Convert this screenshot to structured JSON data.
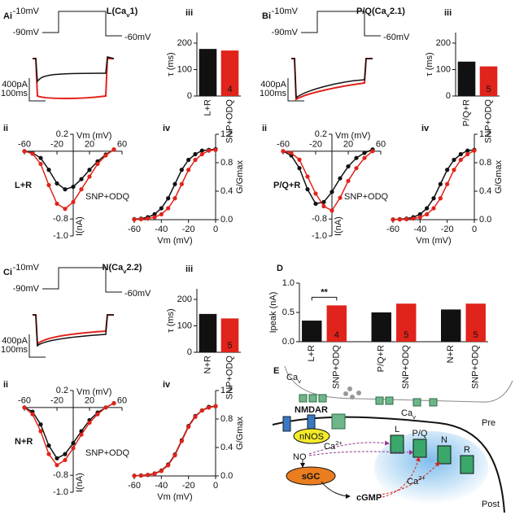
{
  "panels": [
    {
      "label": "Ai",
      "title": {
        "text": "L(Ca",
        "sub": "v",
        "tail": "1)"
      },
      "protocol": {
        "step": "-10mV",
        "hold": "-90mV",
        "tail": "-60mV"
      },
      "scale": {
        "current": "400pA",
        "time": "100ms"
      }
    },
    {
      "label": "Bi",
      "title": {
        "text": "P/Q(Ca",
        "sub": "v",
        "tail": "2.1)"
      },
      "protocol": {
        "step": "-10mV",
        "hold": "-90mV",
        "tail": "-60mV"
      },
      "scale": {
        "current": "400pA",
        "time": "100ms"
      }
    },
    {
      "label": "Ci",
      "title": {
        "text": "N(Ca",
        "sub": "v",
        "tail": "2.2)"
      },
      "protocol": {
        "step": "-10mV",
        "hold": "-90mV",
        "tail": "-60mV"
      },
      "scale": {
        "current": "400pA",
        "time": "100ms"
      }
    }
  ],
  "chart_data": [
    {
      "type": "bar",
      "label": "iii",
      "ylabel": "τ (ms)",
      "categories": [
        "L+R",
        "SNP+ODQ"
      ],
      "values": [
        178,
        172
      ],
      "colors": [
        "#111111",
        "#e0231b"
      ],
      "n": [
        5,
        4
      ],
      "ylim": [
        0,
        240
      ],
      "yticks": [
        0,
        100,
        200
      ]
    },
    {
      "type": "line",
      "label": "ii",
      "xlabel": "Vm (mV)",
      "ylabel": "I(nA)",
      "x": [
        -60,
        -50,
        -40,
        -30,
        -20,
        -10,
        0,
        10,
        20,
        30,
        40,
        50
      ],
      "series": [
        {
          "name": "L+R",
          "color": "#111111",
          "values": [
            0,
            -0.02,
            -0.08,
            -0.22,
            -0.38,
            -0.45,
            -0.42,
            -0.33,
            -0.22,
            -0.12,
            -0.04,
            0.02
          ]
        },
        {
          "name": "SNP+ODQ",
          "color": "#e0231b",
          "values": [
            0,
            -0.03,
            -0.15,
            -0.4,
            -0.62,
            -0.68,
            -0.6,
            -0.45,
            -0.3,
            -0.15,
            -0.05,
            0.02
          ]
        }
      ],
      "xlim": [
        -60,
        60
      ],
      "ylim": [
        -1,
        0.2
      ],
      "xticks": [
        -60,
        -20,
        20,
        60
      ],
      "yticks": [
        {
          "value": -1,
          "label": "-1.0"
        },
        -0.8,
        0.2
      ]
    },
    {
      "type": "line",
      "label": "iv",
      "xlabel": "Vm (mV)",
      "ylabel": "G/Gmax",
      "x": [
        -60,
        -55,
        -50,
        -45,
        -40,
        -35,
        -30,
        -25,
        -20,
        -15,
        -10,
        -5,
        0
      ],
      "series": [
        {
          "color": "#111111",
          "values": [
            0.007,
            0.015,
            0.034,
            0.076,
            0.16,
            0.3,
            0.5,
            0.7,
            0.84,
            0.92,
            0.97,
            0.98,
            0.99
          ]
        },
        {
          "color": "#e0231b",
          "values": [
            0.003,
            0.007,
            0.015,
            0.034,
            0.076,
            0.16,
            0.3,
            0.5,
            0.7,
            0.84,
            0.92,
            0.97,
            0.98
          ]
        }
      ],
      "xlim": [
        -60,
        0
      ],
      "ylim": [
        0,
        1.2
      ],
      "xticks": [
        -60,
        -40,
        -20,
        0
      ],
      "yticks": [
        {
          "value": 0,
          "label": "0.0"
        },
        0.4,
        0.8,
        1.2
      ]
    },
    {
      "type": "bar",
      "label": "iii",
      "ylabel": "τ (ms)",
      "categories": [
        "P/Q+R",
        "SNP+ODQ"
      ],
      "values": [
        130,
        112
      ],
      "colors": [
        "#111111",
        "#e0231b"
      ],
      "n": [
        4,
        5
      ],
      "ylim": [
        0,
        240
      ],
      "yticks": [
        0,
        100,
        200
      ]
    },
    {
      "type": "line",
      "label": "ii",
      "xlabel": "Vm (mV)",
      "ylabel": "I(nA)",
      "x": [
        -60,
        -50,
        -40,
        -30,
        -20,
        -10,
        0,
        10,
        20,
        30,
        40,
        50
      ],
      "series": [
        {
          "name": "P/Q+R",
          "color": "#111111",
          "values": [
            0,
            -0.05,
            -0.2,
            -0.45,
            -0.62,
            -0.6,
            -0.48,
            -0.32,
            -0.18,
            -0.08,
            -0.02,
            0.02
          ]
        },
        {
          "name": "SNP+ODQ",
          "color": "#e0231b",
          "values": [
            0,
            -0.02,
            -0.1,
            -0.3,
            -0.5,
            -0.65,
            -0.7,
            -0.55,
            -0.35,
            -0.2,
            -0.08,
            0
          ]
        }
      ],
      "xlim": [
        -60,
        60
      ],
      "ylim": [
        -1,
        0.2
      ],
      "xticks": [
        -60,
        -20,
        20,
        60
      ],
      "yticks": [
        {
          "value": -1,
          "label": "-1.0"
        },
        -0.8,
        0.2
      ]
    },
    {
      "type": "line",
      "label": "iv",
      "xlabel": "Vm (mV)",
      "ylabel": "G/Gmax",
      "x": [
        -60,
        -55,
        -50,
        -45,
        -40,
        -35,
        -30,
        -25,
        -20,
        -15,
        -10,
        -5,
        0
      ],
      "series": [
        {
          "color": "#111111",
          "values": [
            0.003,
            0.007,
            0.015,
            0.034,
            0.076,
            0.16,
            0.3,
            0.5,
            0.7,
            0.84,
            0.92,
            0.97,
            0.98
          ]
        },
        {
          "color": "#e0231b",
          "values": [
            0.001,
            0.003,
            0.007,
            0.015,
            0.034,
            0.076,
            0.16,
            0.3,
            0.5,
            0.7,
            0.84,
            0.92,
            0.97
          ]
        }
      ],
      "xlim": [
        -60,
        0
      ],
      "ylim": [
        0,
        1.2
      ],
      "xticks": [
        -60,
        -40,
        -20,
        0
      ],
      "yticks": [
        {
          "value": 0,
          "label": "0.0"
        },
        0.4,
        0.8,
        1.2
      ]
    },
    {
      "type": "bar",
      "label": "iii",
      "ylabel": "τ (ms)",
      "categories": [
        "N+R",
        "SNP+ODQ"
      ],
      "values": [
        145,
        128
      ],
      "colors": [
        "#111111",
        "#e0231b"
      ],
      "n": [
        6,
        5
      ],
      "ylim": [
        0,
        240
      ],
      "yticks": [
        0,
        100,
        200
      ]
    },
    {
      "type": "line",
      "label": "ii",
      "xlabel": "Vm (mV)",
      "ylabel": "I(nA)",
      "x": [
        -60,
        -50,
        -40,
        -30,
        -20,
        -10,
        0,
        10,
        20,
        30,
        40,
        50
      ],
      "series": [
        {
          "name": "N+R",
          "color": "#111111",
          "values": [
            0,
            -0.05,
            -0.2,
            -0.45,
            -0.6,
            -0.55,
            -0.42,
            -0.28,
            -0.15,
            -0.06,
            0,
            0.05
          ]
        },
        {
          "name": "SNP+ODQ",
          "color": "#e0231b",
          "values": [
            0,
            -0.08,
            -0.28,
            -0.55,
            -0.68,
            -0.62,
            -0.48,
            -0.32,
            -0.18,
            -0.08,
            0,
            0.05
          ]
        }
      ],
      "xlim": [
        -60,
        60
      ],
      "ylim": [
        -1,
        0.2
      ],
      "xticks": [
        -60,
        -20,
        20,
        60
      ],
      "yticks": [
        {
          "value": -1,
          "label": "-1.0"
        },
        -0.8,
        0.2
      ]
    },
    {
      "type": "line",
      "label": "iv",
      "xlabel": "Vm (mV)",
      "ylabel": "G/Gmax",
      "x": [
        -60,
        -55,
        -50,
        -45,
        -40,
        -35,
        -30,
        -25,
        -20,
        -15,
        -10,
        -5,
        0
      ],
      "series": [
        {
          "color": "#111111",
          "values": [
            0.003,
            0.007,
            0.015,
            0.034,
            0.076,
            0.16,
            0.3,
            0.5,
            0.7,
            0.84,
            0.92,
            0.97,
            0.98
          ]
        },
        {
          "color": "#e0231b",
          "values": [
            0.002,
            0.005,
            0.012,
            0.03,
            0.07,
            0.15,
            0.29,
            0.49,
            0.69,
            0.83,
            0.92,
            0.96,
            0.98
          ]
        }
      ],
      "xlim": [
        -60,
        0
      ],
      "ylim": [
        0,
        1.2
      ],
      "xticks": [
        -60,
        -40,
        -20,
        0
      ],
      "yticks": [
        {
          "value": 0,
          "label": "0.0"
        },
        0.4,
        0.8,
        1.2
      ]
    },
    {
      "type": "bar",
      "label": "D",
      "ylabel": "Ipeak (nA)",
      "categories": [
        "L+R",
        "SNP+ODQ",
        "P/Q+R",
        "SNP+ODQ",
        "N+R",
        "SNP+ODQ"
      ],
      "values": [
        0.36,
        0.62,
        0.5,
        0.65,
        0.55,
        0.65
      ],
      "colors": [
        "#111111",
        "#e0231b",
        "#111111",
        "#e0231b",
        "#111111",
        "#e0231b"
      ],
      "n": [
        5,
        4,
        4,
        5,
        6,
        5
      ],
      "ylim": [
        0,
        1
      ],
      "yticks": [
        {
          "value": 0,
          "label": "0.0"
        },
        0.5,
        {
          "value": 1,
          "label": "1.0"
        }
      ],
      "annotation": "**"
    }
  ],
  "diagram": {
    "label": "E",
    "items": [
      {
        "text": "Ca",
        "sub": "v"
      },
      {
        "text": "Ca",
        "sub": "v"
      },
      "Pre",
      "NMDAR",
      "nNOS",
      {
        "text": "Ca",
        "sup": "2+"
      },
      "NO",
      "sGC",
      "cGMP",
      "L",
      "P/Q",
      "N",
      "R",
      {
        "text": "Ca",
        "sup": "2+"
      },
      "Post"
    ]
  }
}
